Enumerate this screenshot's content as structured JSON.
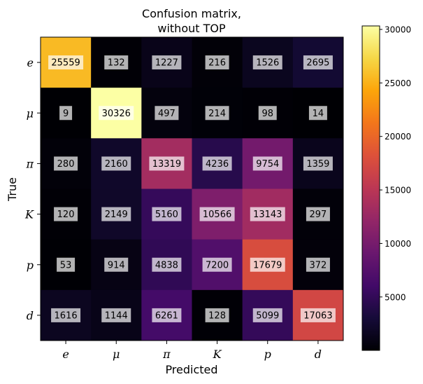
{
  "chart_data": {
    "type": "heatmap",
    "title": [
      "Confusion matrix,",
      "without TOP"
    ],
    "xlabel": "Predicted",
    "ylabel": "True",
    "x_categories": [
      "e",
      "μ",
      "π",
      "K",
      "p",
      "d"
    ],
    "y_categories": [
      "e",
      "μ",
      "π",
      "K",
      "p",
      "d"
    ],
    "values": [
      [
        25559,
        132,
        1227,
        216,
        1526,
        2695
      ],
      [
        9,
        30326,
        497,
        214,
        98,
        14
      ],
      [
        280,
        2160,
        13319,
        4236,
        9754,
        1359
      ],
      [
        120,
        2149,
        5160,
        10566,
        13143,
        297
      ],
      [
        53,
        914,
        4838,
        7200,
        17679,
        372
      ],
      [
        1616,
        1144,
        6261,
        128,
        5099,
        17063
      ]
    ],
    "colormap": "inferno",
    "colorbar": {
      "range": [
        9,
        30326
      ],
      "ticks": [
        5000,
        10000,
        15000,
        20000,
        25000,
        30000
      ]
    }
  }
}
